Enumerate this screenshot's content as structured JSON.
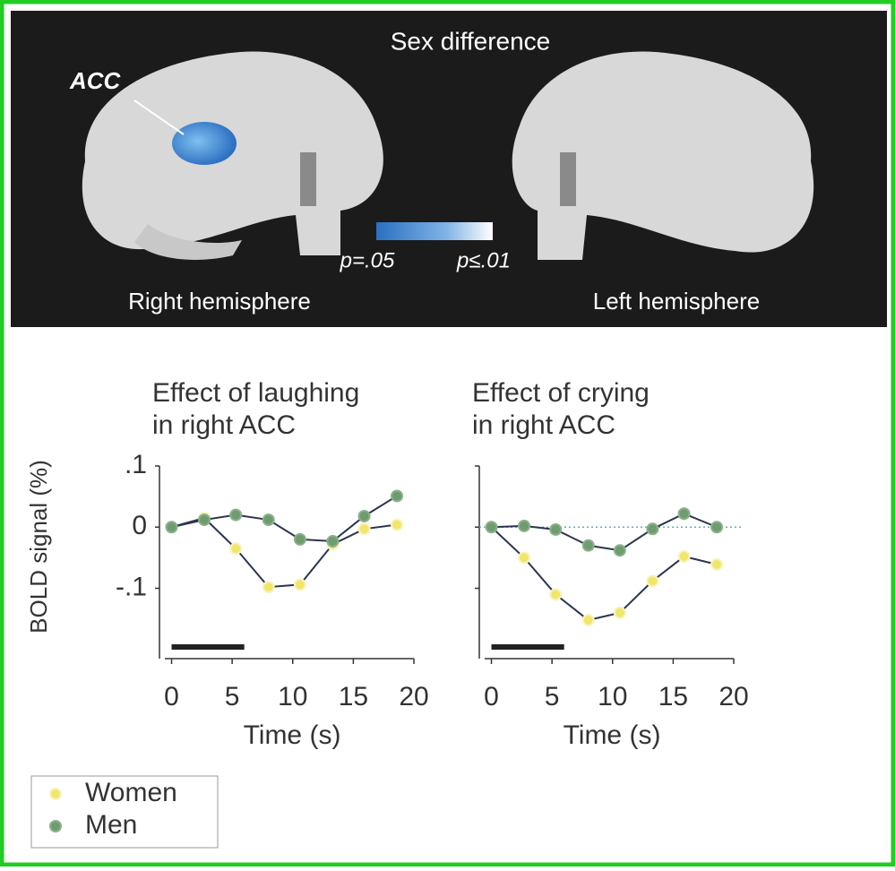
{
  "brain_panel": {
    "title": "Sex difference",
    "region": "ACC",
    "scale_low": "p=.05",
    "scale_high": "p≤.01",
    "right_label": "Right hemisphere",
    "left_label": "Left hemisphere"
  },
  "y_label": "BOLD signal (%)",
  "x_label": "Time (s)",
  "chart_data": [
    {
      "type": "line",
      "title_lines": [
        "Effect of laughing",
        "in right ACC"
      ],
      "x": [
        0,
        2.7,
        5.3,
        8,
        10.6,
        13.3,
        15.9,
        18.6
      ],
      "series": [
        {
          "name": "Women",
          "color": "#f2e66a",
          "values": [
            0,
            0.015,
            -0.035,
            -0.098,
            -0.094,
            -0.028,
            -0.003,
            0.004
          ]
        },
        {
          "name": "Men",
          "color": "#6f9c6f",
          "values": [
            0,
            0.012,
            0.02,
            0.012,
            -0.02,
            -0.023,
            0.018,
            0.051
          ]
        }
      ],
      "stimulus": [
        0,
        6
      ],
      "xlim": [
        -1,
        20
      ],
      "xticks": [
        0,
        5,
        10,
        15,
        20
      ],
      "ylim": [
        -0.215,
        0.1
      ],
      "yticks": [
        {
          "value": 0.1,
          "label": ".1"
        },
        0,
        {
          "value": -0.1,
          "label": "-.1"
        }
      ]
    },
    {
      "type": "line",
      "title_lines": [
        "Effect of crying",
        "in right ACC"
      ],
      "x": [
        0,
        2.7,
        5.3,
        8,
        10.6,
        13.3,
        15.9,
        18.6
      ],
      "series": [
        {
          "name": "Women",
          "color": "#f2e66a",
          "values": [
            0,
            -0.05,
            -0.11,
            -0.152,
            -0.14,
            -0.088,
            -0.048,
            -0.061
          ]
        },
        {
          "name": "Men",
          "color": "#6f9c6f",
          "values": [
            0,
            0.002,
            -0.004,
            -0.03,
            -0.038,
            -0.003,
            0.022,
            0
          ]
        }
      ],
      "stimulus": [
        0,
        6
      ],
      "zero_line": true,
      "xlim": [
        -1,
        20
      ],
      "xticks": [
        0,
        5,
        10,
        15,
        20
      ],
      "ylim": [
        -0.215,
        0.1
      ],
      "yticks": [
        0.1,
        0,
        -0.1
      ],
      "ytick_labels": false
    }
  ]
}
